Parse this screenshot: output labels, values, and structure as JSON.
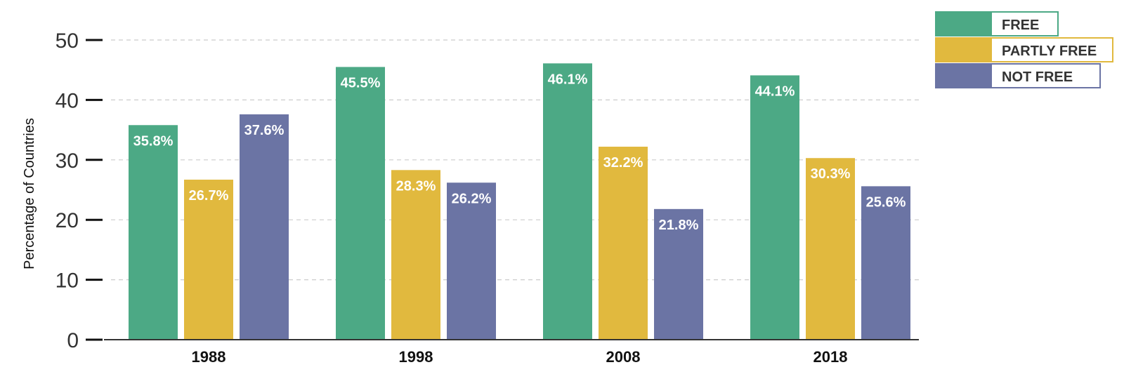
{
  "chart_data": {
    "type": "bar",
    "categories": [
      "1988",
      "1998",
      "2008",
      "2018"
    ],
    "series": [
      {
        "name": "FREE",
        "color": "#4ca985",
        "values": [
          35.8,
          45.5,
          46.1,
          44.1
        ],
        "labels": [
          "35.8%",
          "45.5%",
          "46.1%",
          "44.1%"
        ]
      },
      {
        "name": "PARTLY FREE",
        "color": "#e1b93e",
        "values": [
          26.7,
          28.3,
          32.2,
          30.3
        ],
        "labels": [
          "26.7%",
          "28.3%",
          "32.2%",
          "30.3%"
        ]
      },
      {
        "name": "NOT FREE",
        "color": "#6b74a4",
        "values": [
          37.6,
          26.2,
          21.8,
          25.6
        ],
        "labels": [
          "37.6%",
          "26.2%",
          "21.8%",
          "25.6%"
        ]
      }
    ],
    "title": "",
    "xlabel": "",
    "ylabel": "Percentage of Countries",
    "ylim": [
      0,
      50
    ],
    "yticks": [
      0,
      10,
      20,
      30,
      40,
      50
    ],
    "grid": true,
    "legend_position": "top-right"
  }
}
